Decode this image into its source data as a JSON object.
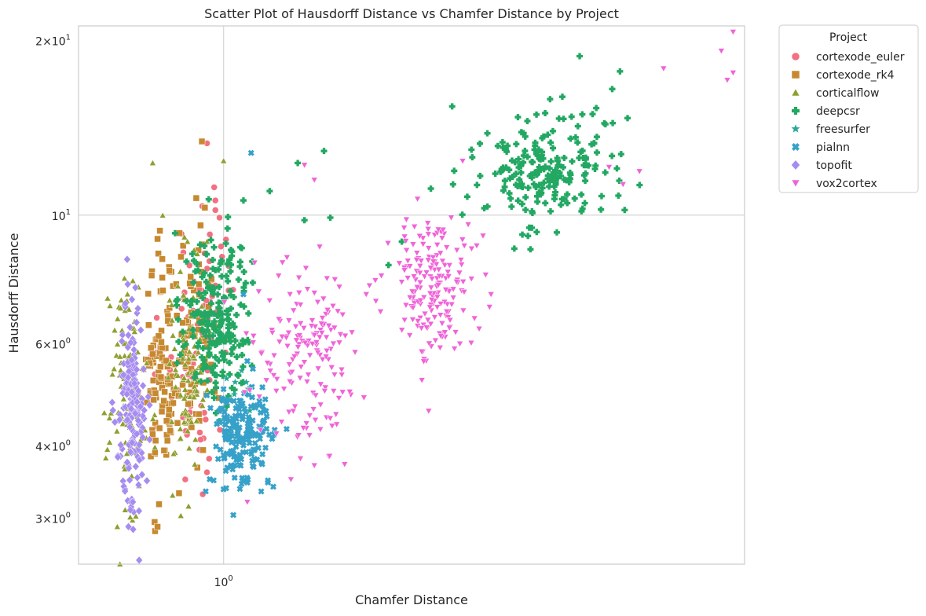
{
  "chart_data": {
    "type": "scatter",
    "title": "Scatter Plot of Hausdorff Distance vs Chamfer Distance by Project",
    "xlabel": "Chamfer Distance",
    "ylabel": "Hausdorff Distance",
    "xscale": "log",
    "yscale": "log",
    "xlim": [
      0.7,
      3.6
    ],
    "ylim": [
      2.5,
      21.2
    ],
    "xticks": [
      {
        "value": 1,
        "base": "10",
        "exp": "0"
      }
    ],
    "yticks": [
      {
        "value": 3,
        "mant": "3",
        "base": "10",
        "exp": "0"
      },
      {
        "value": 4,
        "mant": "4",
        "base": "10",
        "exp": "0"
      },
      {
        "value": 6,
        "mant": "6",
        "base": "10",
        "exp": "0"
      },
      {
        "value": 10,
        "mant": "",
        "base": "10",
        "exp": "1"
      },
      {
        "value": 20,
        "mant": "2",
        "base": "10",
        "exp": "1"
      }
    ],
    "grid": true,
    "legend": {
      "title": "Project",
      "placement": "outside upper right"
    },
    "series": [
      {
        "name": "cortexode_euler",
        "color": "#f37080",
        "marker": "circle",
        "cx": [
          0.865,
          0.935,
          0.975
        ],
        "cy": [
          5.0,
          5.8,
          8.0
        ],
        "sx": [
          0.03,
          0.025,
          0.02
        ],
        "sy": [
          0.22,
          0.2,
          0.18
        ],
        "n": [
          15,
          55,
          18
        ],
        "extra": [
          [
            0.96,
            13.3
          ],
          [
            0.98,
            10.6
          ],
          [
            0.99,
            9.9
          ],
          [
            0.98,
            10.2
          ],
          [
            0.95,
            3.3
          ],
          [
            0.91,
            3.5
          ],
          [
            0.945,
            4.1
          ],
          [
            0.965,
            3.8
          ],
          [
            0.99,
            4.6
          ],
          [
            0.96,
            3.6
          ]
        ]
      },
      {
        "name": "cortexode_rk4",
        "color": "#c78930",
        "marker": "square",
        "cx": [
          0.845,
          0.875,
          0.935
        ],
        "cy": [
          5.4,
          5.2,
          6.0
        ],
        "sx": [
          0.01,
          0.012,
          0.02
        ],
        "sy": [
          0.24,
          0.22,
          0.22
        ],
        "n": [
          50,
          60,
          60
        ],
        "extra": [
          [
            0.948,
            13.4
          ],
          [
            0.935,
            10.7
          ],
          [
            0.955,
            10.3
          ],
          [
            0.945,
            9.6
          ],
          [
            0.85,
            9.1
          ],
          [
            0.855,
            9.4
          ],
          [
            0.86,
            8.4
          ],
          [
            0.845,
            2.85
          ],
          [
            0.85,
            2.9
          ],
          [
            0.86,
            7.8
          ],
          [
            0.89,
            7.6
          ],
          [
            0.94,
            8.7
          ],
          [
            0.95,
            8.9
          ]
        ]
      },
      {
        "name": "corticalflow",
        "color": "#8f9f2e",
        "marker": "triangle",
        "cx": [
          0.79,
          0.92
        ],
        "cy": [
          4.9,
          5.3
        ],
        "sx": [
          0.018,
          0.02
        ],
        "sy": [
          0.22,
          0.2
        ],
        "n": [
          110,
          100
        ],
        "extra": [
          [
            0.775,
            2.5
          ],
          [
            0.84,
            12.3
          ],
          [
            1.0,
            12.4
          ],
          [
            0.77,
            2.9
          ],
          [
            0.775,
            5.7
          ],
          [
            0.8,
            7.7
          ],
          [
            0.915,
            9.0
          ],
          [
            0.93,
            8.7
          ],
          [
            0.96,
            9.0
          ],
          [
            0.785,
            3.1
          ]
        ]
      },
      {
        "name": "deepcsr",
        "color": "#22a862",
        "marker": "plus",
        "cx": [
          0.985,
          2.2
        ],
        "cy": [
          6.6,
          12.0
        ],
        "sx": [
          0.04,
          0.2
        ],
        "sy": [
          0.17,
          0.11
        ],
        "n": [
          230,
          210
        ],
        "extra": [
          [
            1.2,
            12.3
          ],
          [
            2.4,
            18.8
          ],
          [
            2.65,
            17.7
          ],
          [
            2.6,
            16.5
          ],
          [
            2.7,
            14.7
          ],
          [
            2.5,
            15.3
          ],
          [
            1.12,
            11.0
          ],
          [
            1.05,
            10.6
          ],
          [
            1.22,
            9.8
          ],
          [
            1.3,
            9.9
          ],
          [
            1.28,
            12.9
          ],
          [
            2.3,
            16.0
          ],
          [
            2.55,
            14.4
          ],
          [
            1.5,
            8.2
          ],
          [
            1.55,
            9.0
          ]
        ]
      },
      {
        "name": "freesurfer",
        "color": "#2ca89a",
        "marker": "star",
        "cx": [
          1.04
        ],
        "cy": [
          5.2
        ],
        "sx": [
          0.025
        ],
        "sy": [
          0.1
        ],
        "n": [
          8
        ],
        "extra": []
      },
      {
        "name": "pialnn",
        "color": "#36a1c9",
        "marker": "x",
        "cx": [
          1.05
        ],
        "cy": [
          4.15
        ],
        "sx": [
          0.035
        ],
        "sy": [
          0.11
        ],
        "n": [
          180
        ],
        "extra": [
          [
            1.07,
            12.8
          ],
          [
            1.13,
            3.4
          ],
          [
            1.05,
            7.3
          ],
          [
            1.06,
            5.6
          ]
        ]
      },
      {
        "name": "topofit",
        "color": "#a68cf0",
        "marker": "diamond",
        "cx": [
          0.8
        ],
        "cy": [
          4.65
        ],
        "sx": [
          0.014
        ],
        "sy": [
          0.2
        ],
        "n": [
          180
        ],
        "extra": [
          [
            0.79,
            7.6
          ],
          [
            0.805,
            7.5
          ],
          [
            0.8,
            3.2
          ],
          [
            0.795,
            3.1
          ],
          [
            0.81,
            6.9
          ]
        ]
      },
      {
        "name": "vox2cortex",
        "color": "#f064d8",
        "marker": "triangle-down",
        "cx": [
          1.22,
          1.68
        ],
        "cy": [
          5.8,
          7.6
        ],
        "sx": [
          0.08,
          0.09
        ],
        "sy": [
          0.17,
          0.14
        ],
        "n": [
          160,
          190
        ],
        "extra": [
          [
            3.4,
            19.2
          ],
          [
            3.5,
            20.7
          ],
          [
            3.45,
            17.1
          ],
          [
            3.5,
            17.6
          ],
          [
            2.95,
            17.9
          ],
          [
            2.78,
            11.9
          ],
          [
            2.58,
            12.1
          ],
          [
            2.67,
            11.3
          ],
          [
            1.93,
            7.3
          ],
          [
            1.25,
            11.5
          ],
          [
            1.22,
            12.2
          ],
          [
            1.42,
            7.3
          ],
          [
            1.18,
            3.5
          ],
          [
            1.06,
            3.2
          ],
          [
            1.25,
            3.7
          ],
          [
            1.8,
            12.4
          ],
          [
            1.75,
            9.9
          ]
        ]
      }
    ]
  }
}
